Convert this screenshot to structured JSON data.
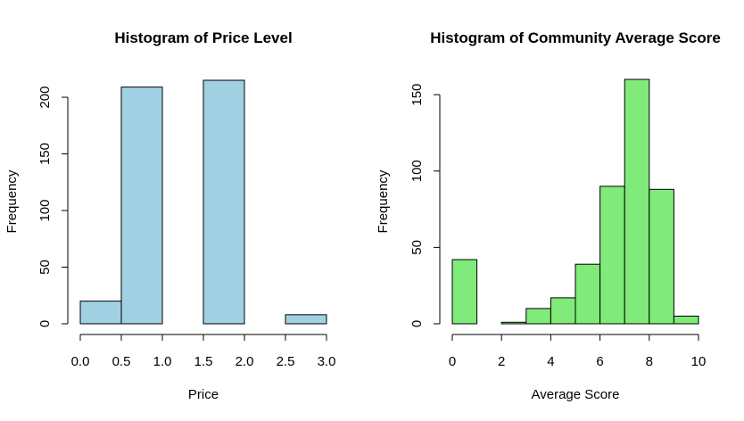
{
  "chart_data": [
    {
      "type": "bar",
      "title": "Histogram of Price Level",
      "xlabel": "Price",
      "ylabel": "Frequency",
      "bins": [
        [
          0,
          0.5
        ],
        [
          0.5,
          1.0
        ],
        [
          1.0,
          1.5
        ],
        [
          1.5,
          2.0
        ],
        [
          2.0,
          2.5
        ],
        [
          2.5,
          3.0
        ]
      ],
      "values": [
        20,
        209,
        0,
        215,
        0,
        8
      ],
      "xlim": [
        0,
        3
      ],
      "ylim": [
        0,
        215
      ],
      "xticks": [
        "0.0",
        "0.5",
        "1.0",
        "1.5",
        "2.0",
        "2.5",
        "3.0"
      ],
      "yticks": [
        "0",
        "50",
        "100",
        "150",
        "200"
      ],
      "color": "#a0d1e2",
      "grid": false
    },
    {
      "type": "bar",
      "title": "Histogram of Community Average Score",
      "xlabel": "Average Score",
      "ylabel": "Frequency",
      "bins": [
        [
          0,
          1
        ],
        [
          1,
          2
        ],
        [
          2,
          3
        ],
        [
          3,
          4
        ],
        [
          4,
          5
        ],
        [
          5,
          6
        ],
        [
          6,
          7
        ],
        [
          7,
          8
        ],
        [
          8,
          9
        ],
        [
          9,
          10
        ]
      ],
      "values": [
        42,
        0,
        1,
        10,
        17,
        39,
        90,
        160,
        88,
        5
      ],
      "xlim": [
        0,
        10
      ],
      "ylim": [
        0,
        160
      ],
      "xticks": [
        "0",
        "2",
        "4",
        "6",
        "8",
        "10"
      ],
      "yticks": [
        "0",
        "50",
        "100",
        "150"
      ],
      "color": "#80ea7a",
      "grid": false
    }
  ]
}
